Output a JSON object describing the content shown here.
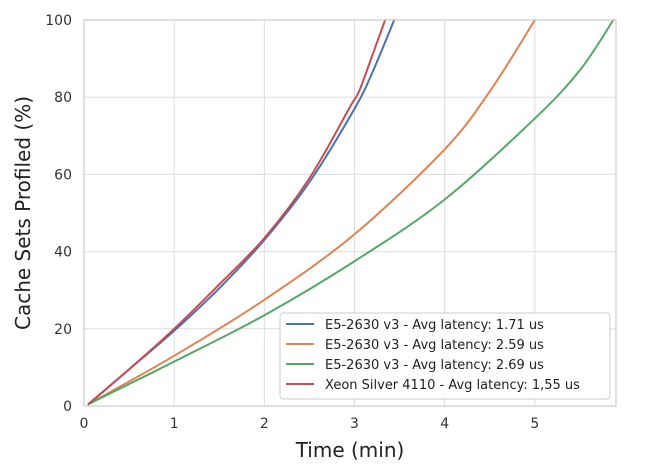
{
  "chart_data": {
    "type": "line",
    "xlabel": "Time (min)",
    "ylabel": "Cache Sets Profiled (%)",
    "xlim": [
      0,
      5.9
    ],
    "ylim": [
      0,
      100
    ],
    "xticks": [
      "0",
      "1",
      "2",
      "3",
      "4",
      "5"
    ],
    "yticks": [
      "0",
      "20",
      "40",
      "60",
      "80",
      "100"
    ],
    "grid": true,
    "legend_position": "lower-right",
    "series": [
      {
        "name": "E5-2630 v3 - Avg latency: 1.71 us",
        "color": "#4c72b0",
        "x": [
          0.05,
          0.5,
          1.0,
          1.5,
          2.0,
          2.5,
          3.0,
          3.2,
          3.44
        ],
        "y": [
          0.5,
          9.5,
          19.5,
          30.5,
          43.0,
          58.0,
          77.0,
          86.5,
          100
        ]
      },
      {
        "name": "E5-2630 v3 - Avg latency: 2.59 us",
        "color": "#dd8452",
        "x": [
          0.05,
          1.0,
          2.0,
          3.0,
          4.0,
          4.5,
          5.0
        ],
        "y": [
          0.5,
          13.0,
          27.5,
          44.5,
          66.5,
          81.5,
          100
        ]
      },
      {
        "name": "E5-2630 v3 - Avg latency: 2.69 us",
        "color": "#55a868",
        "x": [
          0.05,
          1.0,
          2.0,
          3.0,
          4.0,
          5.0,
          5.5,
          5.87
        ],
        "y": [
          0.5,
          11.5,
          23.5,
          37.5,
          53.5,
          74.5,
          87.0,
          100
        ]
      },
      {
        "name": "Xeon Silver 4110 - Avg latency: 1,55 us",
        "color": "#c44e52",
        "x": [
          0.05,
          0.5,
          1.0,
          1.5,
          2.0,
          2.5,
          2.95,
          3.05,
          3.2,
          3.34
        ],
        "y": [
          0.5,
          9.5,
          20.0,
          31.5,
          43.5,
          59.0,
          77.5,
          81.5,
          91.0,
          100
        ]
      }
    ]
  }
}
